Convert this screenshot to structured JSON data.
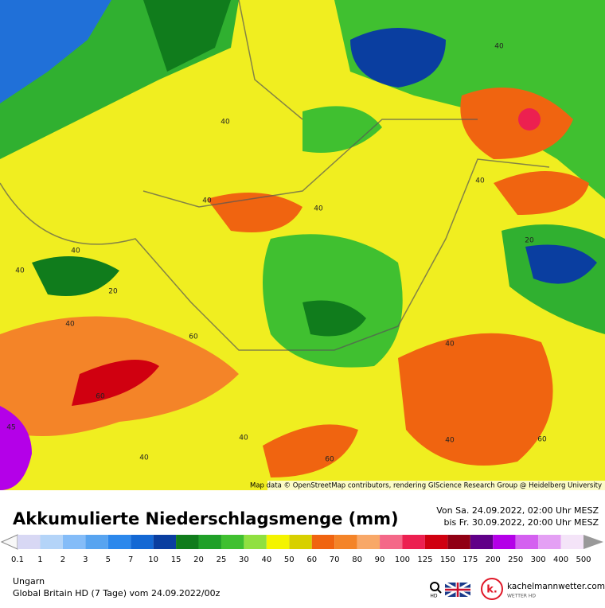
{
  "map": {
    "attribution": "Map data © OpenStreetMap contributors, rendering GIScience Research Group @ Heidelberg University",
    "contour_labels": [
      "40",
      "40",
      "40",
      "40",
      "40",
      "40",
      "40",
      "20",
      "20",
      "40",
      "60",
      "40",
      "60",
      "40",
      "40",
      "40",
      "60",
      "60",
      "45"
    ]
  },
  "title": "Akkumulierte Niederschlagsmenge (mm)",
  "period": [
    "Von Sa. 24.09.2022, 02:00 Uhr MESZ",
    "bis Fr. 30.09.2022, 20:00 Uhr MESZ"
  ],
  "legend": {
    "labels": [
      "0.1",
      "1",
      "2",
      "3",
      "5",
      "7",
      "10",
      "15",
      "20",
      "25",
      "30",
      "40",
      "50",
      "60",
      "70",
      "80",
      "90",
      "100",
      "125",
      "150",
      "175",
      "200",
      "250",
      "300",
      "400",
      "500"
    ],
    "colors": [
      "#d8d8f4",
      "#b4d4f8",
      "#84bcf8",
      "#58a4f0",
      "#2c88ec",
      "#1468d4",
      "#0a3ea0",
      "#107c1c",
      "#20a028",
      "#40c030",
      "#90e040",
      "#f4f400",
      "#d8d000",
      "#f06410",
      "#f48428",
      "#f8a868",
      "#f46888",
      "#ec2050",
      "#d00010",
      "#900014",
      "#600088",
      "#b400e8",
      "#d460f0",
      "#e4a0f4",
      "#f4e4f8"
    ]
  },
  "region": "Ungarn",
  "model": "Global Britain HD (7 Tage) vom 24.09.2022/00z",
  "logo": {
    "search": "HD",
    "name": "kachelmannwetter.com",
    "tagline": "WETTER HD"
  }
}
